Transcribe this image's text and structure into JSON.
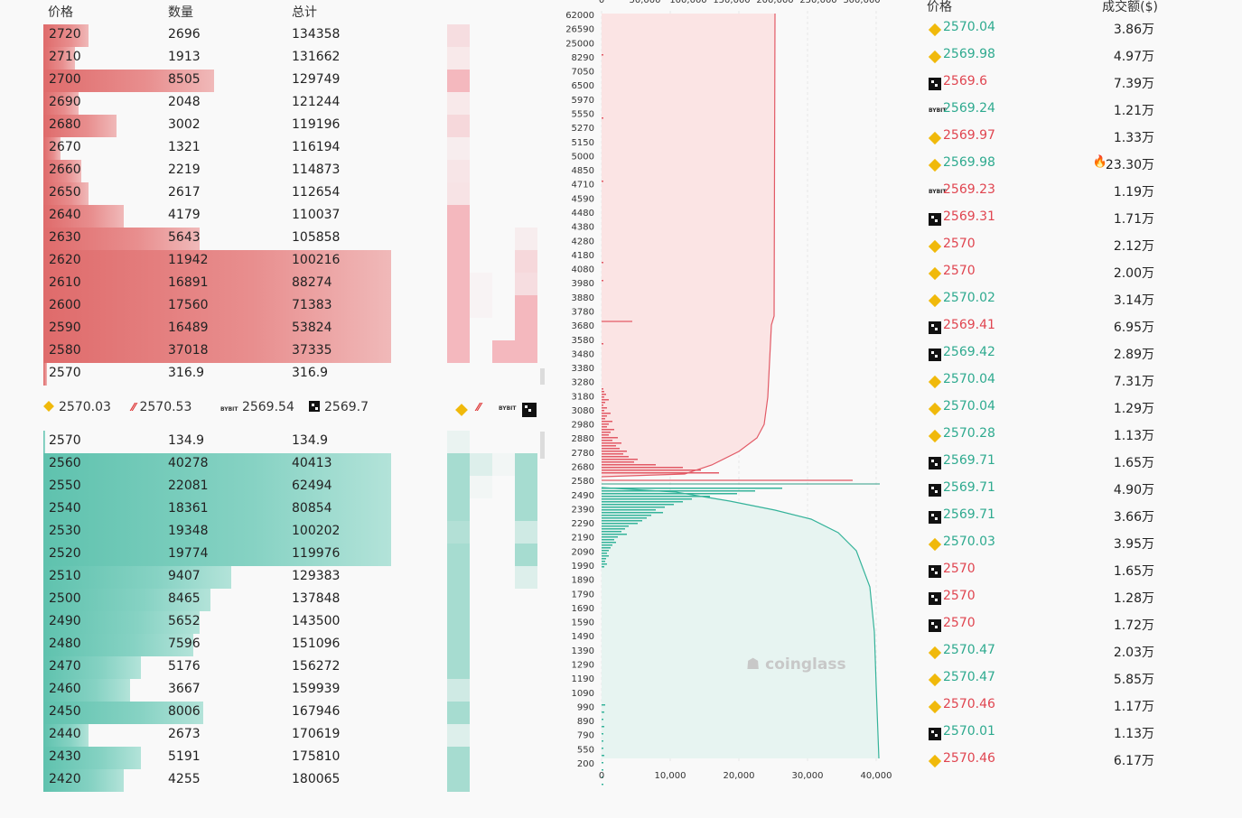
{
  "orderbook": {
    "headers": {
      "price": "价格",
      "qty": "数量",
      "total": "总计"
    },
    "asks": [
      {
        "price": "2720",
        "qty": "2696",
        "total": "134358",
        "f": 0.13
      },
      {
        "price": "2710",
        "qty": "1913",
        "total": "131662",
        "f": 0.09
      },
      {
        "price": "2700",
        "qty": "8505",
        "total": "129749",
        "f": 0.49
      },
      {
        "price": "2690",
        "qty": "2048",
        "total": "121244",
        "f": 0.1
      },
      {
        "price": "2680",
        "qty": "3002",
        "total": "119196",
        "f": 0.21
      },
      {
        "price": "2670",
        "qty": "1321",
        "total": "116194",
        "f": 0.05
      },
      {
        "price": "2660",
        "qty": "2219",
        "total": "114873",
        "f": 0.11
      },
      {
        "price": "2650",
        "qty": "2617",
        "total": "112654",
        "f": 0.13
      },
      {
        "price": "2640",
        "qty": "4179",
        "total": "110037",
        "f": 0.23
      },
      {
        "price": "2630",
        "qty": "5643",
        "total": "105858",
        "f": 0.45
      },
      {
        "price": "2620",
        "qty": "11942",
        "total": "100216",
        "f": 1.0
      },
      {
        "price": "2610",
        "qty": "16891",
        "total": "88274",
        "f": 1.0
      },
      {
        "price": "2600",
        "qty": "17560",
        "total": "71383",
        "f": 1.0
      },
      {
        "price": "2590",
        "qty": "16489",
        "total": "53824",
        "f": 1.0
      },
      {
        "price": "2580",
        "qty": "37018",
        "total": "37335",
        "f": 1.0
      },
      {
        "price": "2570",
        "qty": "316.9",
        "total": "316.9",
        "f": 0.01
      }
    ],
    "bids": [
      {
        "price": "2570",
        "qty": "134.9",
        "total": "134.9",
        "f": 0.005
      },
      {
        "price": "2560",
        "qty": "40278",
        "total": "40413",
        "f": 1.0
      },
      {
        "price": "2550",
        "qty": "22081",
        "total": "62494",
        "f": 1.0
      },
      {
        "price": "2540",
        "qty": "18361",
        "total": "80854",
        "f": 1.0
      },
      {
        "price": "2530",
        "qty": "19348",
        "total": "100202",
        "f": 1.0
      },
      {
        "price": "2520",
        "qty": "19774",
        "total": "119976",
        "f": 1.0
      },
      {
        "price": "2510",
        "qty": "9407",
        "total": "129383",
        "f": 0.54
      },
      {
        "price": "2500",
        "qty": "8465",
        "total": "137848",
        "f": 0.48
      },
      {
        "price": "2490",
        "qty": "5652",
        "total": "143500",
        "f": 0.45
      },
      {
        "price": "2480",
        "qty": "7596",
        "total": "151096",
        "f": 0.43
      },
      {
        "price": "2470",
        "qty": "5176",
        "total": "156272",
        "f": 0.28
      },
      {
        "price": "2460",
        "qty": "3667",
        "total": "159939",
        "f": 0.25
      },
      {
        "price": "2450",
        "qty": "8006",
        "total": "167946",
        "f": 0.46
      },
      {
        "price": "2440",
        "qty": "2673",
        "total": "170619",
        "f": 0.13
      },
      {
        "price": "2430",
        "qty": "5191",
        "total": "175810",
        "f": 0.28
      },
      {
        "price": "2420",
        "qty": "4255",
        "total": "180065",
        "f": 0.23
      }
    ],
    "exchange_prices": [
      {
        "exchange": "binance",
        "price": "2570.03"
      },
      {
        "exchange": "bitget",
        "price": "2570.53"
      },
      {
        "exchange": "bybit",
        "price": "2569.54"
      },
      {
        "exchange": "okx",
        "price": "2569.7"
      }
    ]
  },
  "depth_chart": {
    "top_axis_ticks": [
      "0",
      "50,000",
      "100,000",
      "150,000",
      "200,000",
      "250,000",
      "300,000"
    ],
    "bottom_axis_ticks": [
      "0",
      "10,000",
      "20,000",
      "30,000",
      "40,000"
    ],
    "price_ticks": [
      "62000",
      "26590",
      "25000",
      "8290",
      "7050",
      "6500",
      "5970",
      "5550",
      "5270",
      "5150",
      "5000",
      "4850",
      "4710",
      "4590",
      "4480",
      "4380",
      "4280",
      "4180",
      "4080",
      "3980",
      "3880",
      "3780",
      "3680",
      "3580",
      "3480",
      "3380",
      "3280",
      "3180",
      "3080",
      "2980",
      "2880",
      "2780",
      "2680",
      "2580",
      "2490",
      "2390",
      "2290",
      "2190",
      "2090",
      "1990",
      "1890",
      "1790",
      "1690",
      "1590",
      "1490",
      "1390",
      "1290",
      "1190",
      "1090",
      "990",
      "890",
      "790",
      "550",
      "200"
    ],
    "watermark": "coinglass"
  },
  "trades": {
    "headers": {
      "price": "价格",
      "amount": "成交额($)"
    },
    "rows": [
      {
        "ex": "binance",
        "price": "2570.04",
        "side": "buy",
        "amount": "3.86万"
      },
      {
        "ex": "binance",
        "price": "2569.98",
        "side": "buy",
        "amount": "4.97万"
      },
      {
        "ex": "okx",
        "price": "2569.6",
        "side": "sell",
        "amount": "7.39万"
      },
      {
        "ex": "bybit",
        "price": "2569.24",
        "side": "buy",
        "amount": "1.21万"
      },
      {
        "ex": "binance",
        "price": "2569.97",
        "side": "sell",
        "amount": "1.33万"
      },
      {
        "ex": "binance",
        "price": "2569.98",
        "side": "buy",
        "amount": "23.30万",
        "hot": true
      },
      {
        "ex": "bybit",
        "price": "2569.23",
        "side": "sell",
        "amount": "1.19万"
      },
      {
        "ex": "okx",
        "price": "2569.31",
        "side": "sell",
        "amount": "1.71万"
      },
      {
        "ex": "binance",
        "price": "2570",
        "side": "sell",
        "amount": "2.12万"
      },
      {
        "ex": "binance",
        "price": "2570",
        "side": "sell",
        "amount": "2.00万"
      },
      {
        "ex": "binance",
        "price": "2570.02",
        "side": "buy",
        "amount": "3.14万"
      },
      {
        "ex": "okx",
        "price": "2569.41",
        "side": "sell",
        "amount": "6.95万"
      },
      {
        "ex": "okx",
        "price": "2569.42",
        "side": "buy",
        "amount": "2.89万"
      },
      {
        "ex": "binance",
        "price": "2570.04",
        "side": "buy",
        "amount": "7.31万"
      },
      {
        "ex": "binance",
        "price": "2570.04",
        "side": "buy",
        "amount": "1.29万"
      },
      {
        "ex": "binance",
        "price": "2570.28",
        "side": "buy",
        "amount": "1.13万"
      },
      {
        "ex": "okx",
        "price": "2569.71",
        "side": "buy",
        "amount": "1.65万"
      },
      {
        "ex": "okx",
        "price": "2569.71",
        "side": "buy",
        "amount": "4.90万"
      },
      {
        "ex": "okx",
        "price": "2569.71",
        "side": "buy",
        "amount": "3.66万"
      },
      {
        "ex": "binance",
        "price": "2570.03",
        "side": "buy",
        "amount": "3.95万"
      },
      {
        "ex": "okx",
        "price": "2570",
        "side": "sell",
        "amount": "1.65万"
      },
      {
        "ex": "okx",
        "price": "2570",
        "side": "sell",
        "amount": "1.28万"
      },
      {
        "ex": "okx",
        "price": "2570",
        "side": "sell",
        "amount": "1.72万"
      },
      {
        "ex": "binance",
        "price": "2570.47",
        "side": "buy",
        "amount": "2.03万"
      },
      {
        "ex": "binance",
        "price": "2570.47",
        "side": "buy",
        "amount": "5.85万"
      },
      {
        "ex": "binance",
        "price": "2570.46",
        "side": "sell",
        "amount": "1.17万"
      },
      {
        "ex": "okx",
        "price": "2570.01",
        "side": "buy",
        "amount": "1.13万"
      },
      {
        "ex": "binance",
        "price": "2570.46",
        "side": "sell",
        "amount": "6.17万"
      }
    ]
  }
}
